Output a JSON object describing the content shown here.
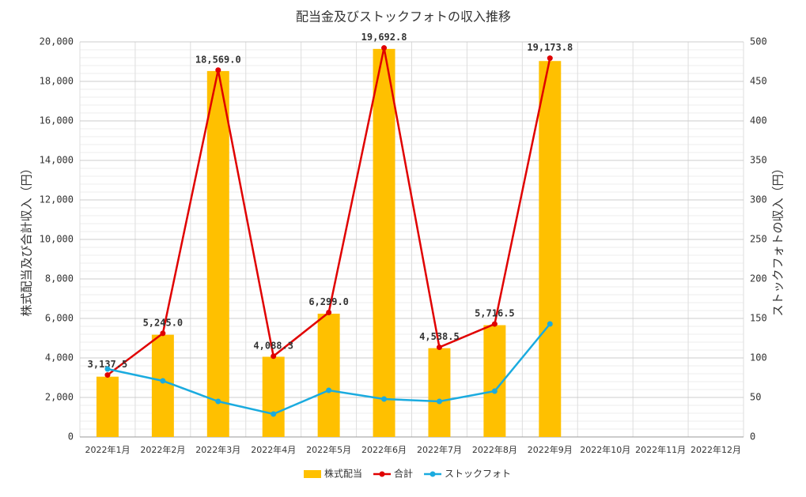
{
  "chart_data": {
    "type": "bar",
    "title": "配当金及びストックフォトの収入推移",
    "y_label": "株式配当及び合計収入（円）",
    "y2_label": "ストックフォトの収入（円）",
    "categories": [
      "2022年1月",
      "2022年2月",
      "2022年3月",
      "2022年4月",
      "2022年5月",
      "2022年6月",
      "2022年7月",
      "2022年8月",
      "2022年9月",
      "2022年10月",
      "2022年11月",
      "2022年12月"
    ],
    "series": [
      {
        "name": "株式配当",
        "type": "bar",
        "color": "#FFC000",
        "values": [
          3052,
          5174,
          18524,
          4059,
          6240,
          19645,
          4494,
          5659,
          19031,
          null,
          null,
          null
        ]
      },
      {
        "name": "合計",
        "type": "line",
        "color": "#E00000",
        "values": [
          3137.5,
          5245.0,
          18569.0,
          4088.3,
          6299.0,
          19692.8,
          4538.5,
          5716.5,
          19173.8,
          null,
          null,
          null
        ],
        "value_labels": [
          "3,137.5",
          "5,245.0",
          "18,569.0",
          "4,088.3",
          "6,299.0",
          "19,692.8",
          "4,538.5",
          "5,716.5",
          "19,173.8",
          null,
          null,
          null
        ]
      },
      {
        "name": "ストックフォト",
        "type": "line",
        "axis": "y2",
        "color": "#1AABDF",
        "values": [
          86,
          71,
          45,
          29,
          59,
          48,
          45,
          58,
          143,
          null,
          null,
          null
        ]
      }
    ],
    "ylim": [
      0,
      20000
    ],
    "yticks": [
      0,
      {
        "value": 2000,
        "label": "2,000"
      },
      {
        "value": 4000,
        "label": "4,000"
      },
      {
        "value": 6000,
        "label": "6,000"
      },
      {
        "value": 8000,
        "label": "8,000"
      },
      {
        "value": 10000,
        "label": "10,000"
      },
      {
        "value": 12000,
        "label": "12,000"
      },
      {
        "value": 14000,
        "label": "14,000"
      },
      {
        "value": 16000,
        "label": "16,000"
      },
      {
        "value": 18000,
        "label": "18,000"
      },
      {
        "value": 20000,
        "label": "20,000"
      }
    ],
    "y2lim": [
      0,
      500
    ],
    "y2ticks": [
      0,
      50,
      100,
      150,
      200,
      250,
      300,
      350,
      400,
      450,
      500
    ],
    "grid": true,
    "legend": "bottom"
  }
}
